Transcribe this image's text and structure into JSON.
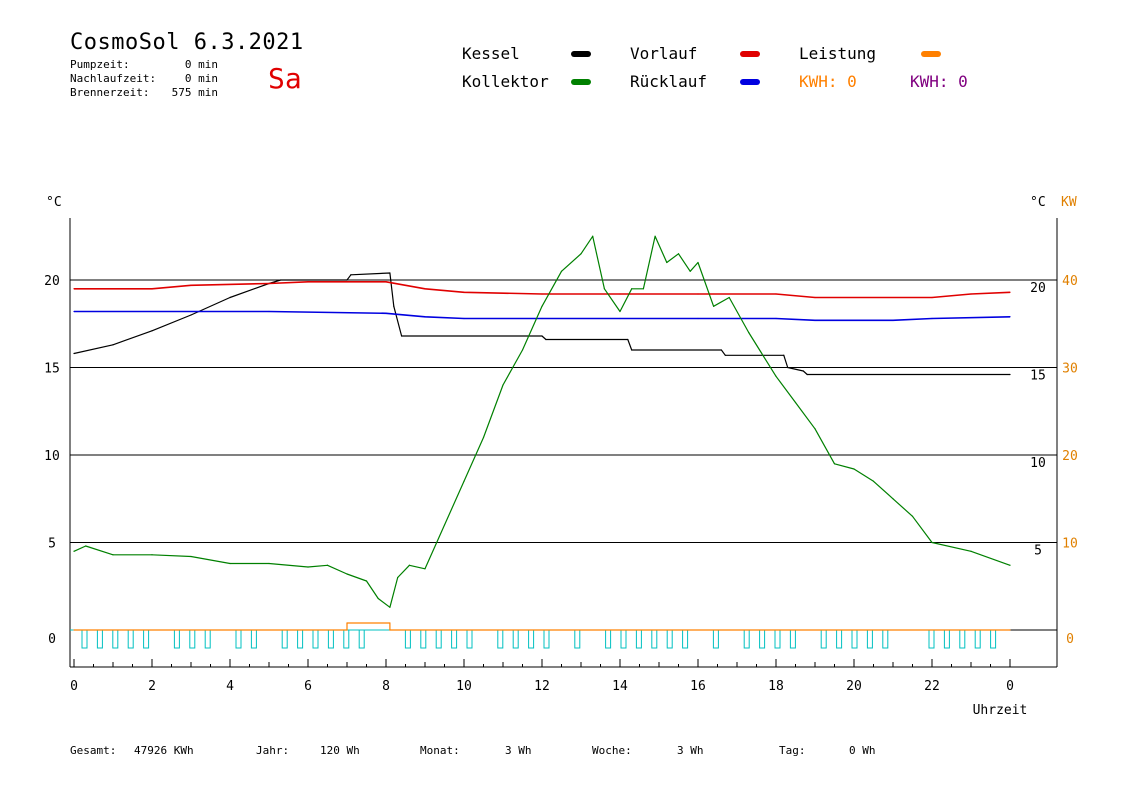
{
  "header": {
    "title": "CosmoSol 6.3.2021",
    "day": "Sa",
    "stats": [
      {
        "label": "Pumpzeit:",
        "value": "0 min"
      },
      {
        "label": "Nachlaufzeit:",
        "value": "0 min"
      },
      {
        "label": "Brennerzeit:",
        "value": "575 min"
      }
    ]
  },
  "legend": {
    "kessel": {
      "label": "Kessel",
      "color": "#000000"
    },
    "kollektor": {
      "label": "Kollektor",
      "color": "#008000"
    },
    "vorlauf": {
      "label": "Vorlauf",
      "color": "#e00000"
    },
    "ruecklauf": {
      "label": "Rücklauf",
      "color": "#0000e0"
    },
    "leistung": {
      "label": "Leistung",
      "color": "#ff8000"
    },
    "kwh1": {
      "label": "KWH: 0",
      "color": "#ff8000"
    },
    "kwh2": {
      "label": "KWH: 0",
      "color": "#800080"
    }
  },
  "footer": [
    {
      "label": "Gesamt:",
      "value": "47926 KWh"
    },
    {
      "label": "Jahr:",
      "value": "120 Wh"
    },
    {
      "label": "Monat:",
      "value": "3 Wh"
    },
    {
      "label": "Woche:",
      "value": "3 Wh"
    },
    {
      "label": "Tag:",
      "value": "0 Wh"
    }
  ],
  "chart_data": {
    "type": "line",
    "xlabel": "Uhrzeit",
    "x_ticks": [
      "0",
      "2",
      "4",
      "6",
      "8",
      "10",
      "12",
      "14",
      "16",
      "18",
      "20",
      "22",
      "0"
    ],
    "xlim": [
      0,
      24
    ],
    "y_left_label": "°C",
    "y_left_ticks": [
      "0",
      "5",
      "10",
      "15",
      "20"
    ],
    "y_right_label": "°C",
    "y_right_ticks": [
      "5",
      "10",
      "15",
      "20"
    ],
    "y_right2_label": "KW",
    "y_right2_ticks": [
      "0",
      "10",
      "20",
      "30",
      "40"
    ],
    "ylim": [
      -2,
      24
    ],
    "grid_lines_y": [
      0,
      5,
      10,
      15,
      20
    ],
    "series": [
      {
        "name": "Kessel",
        "color": "#000000",
        "points": [
          [
            0,
            15.8
          ],
          [
            1,
            16.3
          ],
          [
            2,
            17.1
          ],
          [
            3,
            18
          ],
          [
            4,
            19
          ],
          [
            5,
            19.8
          ],
          [
            5.3,
            20
          ],
          [
            7,
            20
          ],
          [
            7.1,
            20.3
          ],
          [
            8.1,
            20.4
          ],
          [
            8.2,
            18.5
          ],
          [
            8.4,
            16.8
          ],
          [
            12,
            16.8
          ],
          [
            12.1,
            16.6
          ],
          [
            14.2,
            16.6
          ],
          [
            14.3,
            16
          ],
          [
            16.6,
            16
          ],
          [
            16.7,
            15.7
          ],
          [
            18.2,
            15.7
          ],
          [
            18.3,
            15
          ],
          [
            18.7,
            14.8
          ],
          [
            18.8,
            14.6
          ],
          [
            24,
            14.6
          ]
        ]
      },
      {
        "name": "Vorlauf",
        "color": "#e00000",
        "points": [
          [
            0,
            19.5
          ],
          [
            2,
            19.5
          ],
          [
            3,
            19.7
          ],
          [
            5,
            19.8
          ],
          [
            6,
            19.9
          ],
          [
            8,
            19.9
          ],
          [
            9,
            19.5
          ],
          [
            10,
            19.3
          ],
          [
            12,
            19.2
          ],
          [
            14,
            19.2
          ],
          [
            16,
            19.2
          ],
          [
            18,
            19.2
          ],
          [
            19,
            19
          ],
          [
            22,
            19
          ],
          [
            23,
            19.2
          ],
          [
            24,
            19.3
          ]
        ]
      },
      {
        "name": "Rücklauf",
        "color": "#0000e0",
        "points": [
          [
            0,
            18.2
          ],
          [
            5,
            18.2
          ],
          [
            8,
            18.1
          ],
          [
            9,
            17.9
          ],
          [
            10,
            17.8
          ],
          [
            12,
            17.8
          ],
          [
            14,
            17.8
          ],
          [
            16,
            17.8
          ],
          [
            18,
            17.8
          ],
          [
            19,
            17.7
          ],
          [
            21,
            17.7
          ],
          [
            22,
            17.8
          ],
          [
            24,
            17.9
          ]
        ]
      },
      {
        "name": "Kollektor",
        "color": "#008000",
        "points": [
          [
            0,
            4.5
          ],
          [
            0.3,
            4.8
          ],
          [
            1,
            4.3
          ],
          [
            2,
            4.3
          ],
          [
            3,
            4.2
          ],
          [
            4,
            3.8
          ],
          [
            5,
            3.8
          ],
          [
            6,
            3.6
          ],
          [
            6.5,
            3.7
          ],
          [
            7,
            3.2
          ],
          [
            7.5,
            2.8
          ],
          [
            7.8,
            1.8
          ],
          [
            8.1,
            1.3
          ],
          [
            8.3,
            3
          ],
          [
            8.6,
            3.7
          ],
          [
            9,
            3.5
          ],
          [
            9.5,
            6
          ],
          [
            10,
            8.5
          ],
          [
            10.5,
            11
          ],
          [
            11,
            14
          ],
          [
            11.5,
            16
          ],
          [
            12,
            18.5
          ],
          [
            12.5,
            20.5
          ],
          [
            13,
            21.5
          ],
          [
            13.3,
            22.5
          ],
          [
            13.6,
            19.5
          ],
          [
            14,
            18.2
          ],
          [
            14.3,
            19.5
          ],
          [
            14.6,
            19.5
          ],
          [
            14.9,
            22.5
          ],
          [
            15.2,
            21
          ],
          [
            15.5,
            21.5
          ],
          [
            15.8,
            20.5
          ],
          [
            16,
            21
          ],
          [
            16.4,
            18.5
          ],
          [
            16.8,
            19
          ],
          [
            17.3,
            17
          ],
          [
            18,
            14.5
          ],
          [
            18.5,
            13
          ],
          [
            19,
            11.5
          ],
          [
            19.5,
            9.5
          ],
          [
            20,
            9.2
          ],
          [
            20.5,
            8.5
          ],
          [
            21,
            7.5
          ],
          [
            21.5,
            6.5
          ],
          [
            22,
            5
          ],
          [
            23,
            4.5
          ],
          [
            24,
            3.7
          ]
        ]
      },
      {
        "name": "Leistung",
        "color": "#ff8000",
        "points": [
          [
            0,
            0
          ],
          [
            7,
            0
          ],
          [
            7,
            0.4
          ],
          [
            8.1,
            0.4
          ],
          [
            8.1,
            0
          ],
          [
            24,
            0
          ]
        ]
      }
    ],
    "pump_marker_color": "#00c0c0"
  }
}
